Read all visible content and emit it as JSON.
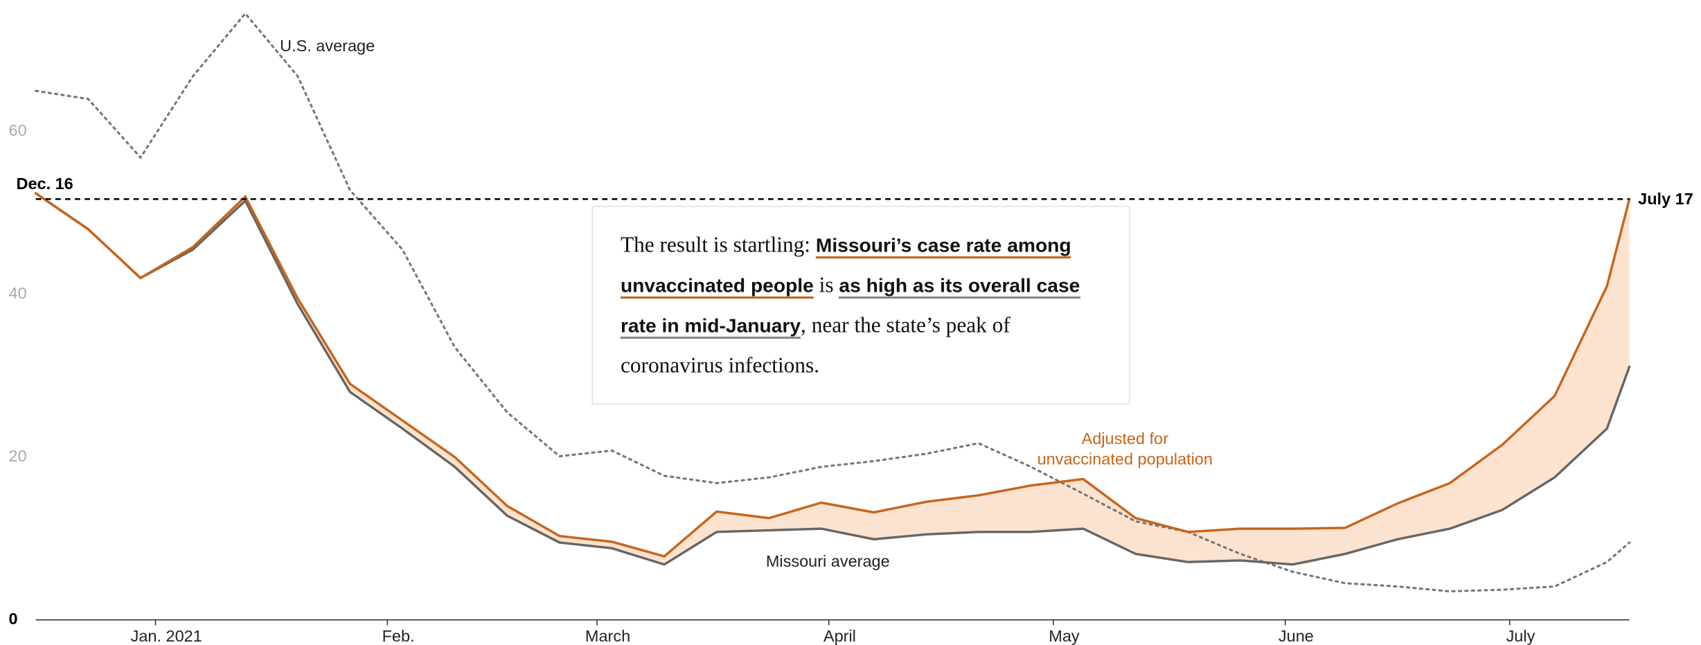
{
  "chart_data": {
    "type": "line",
    "x": [
      "2020-12-16",
      "2020-12-23",
      "2020-12-30",
      "2021-01-06",
      "2021-01-13",
      "2021-01-20",
      "2021-01-27",
      "2021-02-03",
      "2021-02-10",
      "2021-02-17",
      "2021-02-24",
      "2021-03-03",
      "2021-03-10",
      "2021-03-17",
      "2021-03-24",
      "2021-03-31",
      "2021-04-07",
      "2021-04-14",
      "2021-04-21",
      "2021-04-28",
      "2021-05-05",
      "2021-05-12",
      "2021-05-19",
      "2021-05-26",
      "2021-06-02",
      "2021-06-09",
      "2021-06-16",
      "2021-06-23",
      "2021-06-30",
      "2021-07-07",
      "2021-07-14",
      "2021-07-17"
    ],
    "xlim": [
      "2020-12-16",
      "2021-07-17"
    ],
    "xticks": [
      {
        "value": "2021-01-01",
        "label": "Jan. 2021"
      },
      {
        "value": "2021-02-01",
        "label": "Feb."
      },
      {
        "value": "2021-03-01",
        "label": "March"
      },
      {
        "value": "2021-04-01",
        "label": "April"
      },
      {
        "value": "2021-05-01",
        "label": "May"
      },
      {
        "value": "2021-06-01",
        "label": "June"
      },
      {
        "value": "2021-07-01",
        "label": "July"
      }
    ],
    "ylim": [
      0,
      75
    ],
    "yticks": [
      0,
      20,
      40,
      60
    ],
    "series": [
      {
        "name": "U.S. average",
        "color": "#777777",
        "style": "dotted",
        "values": [
          65,
          64,
          56.8,
          66.8,
          74.5,
          66.8,
          52.8,
          45.5,
          33.5,
          25.5,
          20.1,
          20.8,
          17.7,
          16.8,
          17.5,
          18.8,
          19.5,
          20.4,
          21.7,
          18.8,
          15.5,
          12.1,
          10.8,
          8.1,
          5.9,
          4.5,
          4.1,
          3.5,
          3.7,
          4.1,
          7.1,
          9.5
        ]
      },
      {
        "name": "Missouri average",
        "color": "#666666",
        "style": "solid",
        "values": [
          52.4,
          48,
          42,
          45.5,
          51.5,
          38.8,
          28,
          23.5,
          18.8,
          12.8,
          9.5,
          8.8,
          6.8,
          10.8,
          11,
          11.2,
          9.9,
          10.5,
          10.8,
          10.8,
          11.2,
          8.1,
          7.1,
          7.3,
          6.8,
          8.1,
          9.9,
          11.2,
          13.5,
          17.5,
          23.5,
          31.1
        ]
      },
      {
        "name_lines": [
          "Adjusted for",
          "unvaccinated population"
        ],
        "color": "#c8641b",
        "style": "solid",
        "values": [
          52.4,
          48,
          42,
          45.8,
          52,
          39.5,
          29,
          24.5,
          20,
          14,
          10.3,
          9.6,
          7.8,
          13.3,
          12.5,
          14.4,
          13.2,
          14.5,
          15.3,
          16.5,
          17.3,
          12.5,
          10.8,
          11.2,
          11.2,
          11.3,
          14.3,
          16.8,
          21.5,
          27.5,
          41,
          51.7
        ]
      }
    ],
    "fill_between_color": "#fce3cf",
    "reference": {
      "value": 51.7,
      "start_label": "Dec. 16",
      "end_label": "July 17"
    },
    "annotation": [
      "The result is startling: ",
      "Missouri’s case rate among unvaccinated people",
      " is ",
      "as high as its overall case rate in mid-January",
      ", near the state’s peak of coronavirus infections."
    ]
  }
}
